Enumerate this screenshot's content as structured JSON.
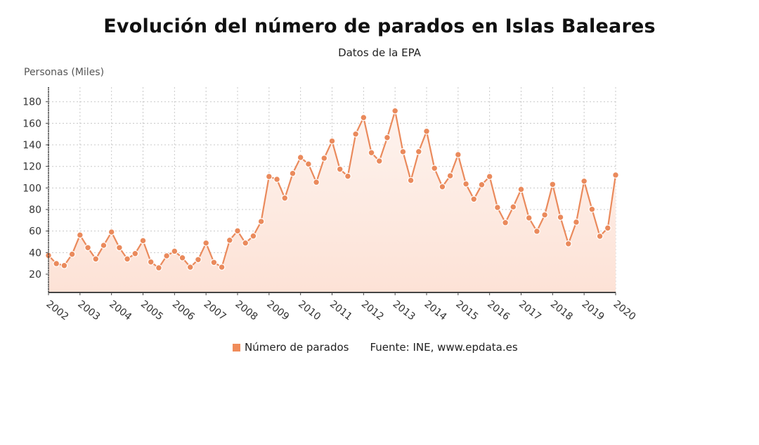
{
  "header": {
    "title": "Evolución del número de parados en Islas Baleares",
    "subtitle": "Datos de la EPA"
  },
  "legend": {
    "series_label": "Número de parados",
    "source": "Fuente: INE, www.epdata.es"
  },
  "colors": {
    "series": "#ea8a5c",
    "fill_top": "#fbece4",
    "fill_bottom": "#fde3d8",
    "grid": "#c8c8c8",
    "axis": "#444444"
  },
  "chart_data": {
    "type": "area",
    "title": "Evolución del número de parados en Islas Baleares",
    "subtitle": "Datos de la EPA",
    "xlabel": "",
    "ylabel": "Personas (Miles)",
    "ylim": [
      3,
      193
    ],
    "yticks": [
      20,
      40,
      60,
      80,
      100,
      120,
      140,
      160,
      180
    ],
    "xticks": [
      "2002",
      "2003",
      "2004",
      "2005",
      "2006",
      "2007",
      "2008",
      "2009",
      "2010",
      "2011",
      "2012",
      "2013",
      "2014",
      "2015",
      "2016",
      "2017",
      "2018",
      "2019",
      "2020"
    ],
    "grid": true,
    "legend_position": "bottom",
    "source": "Fuente: INE, www.epdata.es",
    "series": [
      {
        "name": "Número de parados",
        "x": [
          "2002T1",
          "2002T2",
          "2002T3",
          "2002T4",
          "2003T1",
          "2003T2",
          "2003T3",
          "2003T4",
          "2004T1",
          "2004T2",
          "2004T3",
          "2004T4",
          "2005T1",
          "2005T2",
          "2005T3",
          "2005T4",
          "2006T1",
          "2006T2",
          "2006T3",
          "2006T4",
          "2007T1",
          "2007T2",
          "2007T3",
          "2007T4",
          "2008T1",
          "2008T2",
          "2008T3",
          "2008T4",
          "2009T1",
          "2009T2",
          "2009T3",
          "2009T4",
          "2010T1",
          "2010T2",
          "2010T3",
          "2010T4",
          "2011T1",
          "2011T2",
          "2011T3",
          "2011T4",
          "2012T1",
          "2012T2",
          "2012T3",
          "2012T4",
          "2013T1",
          "2013T2",
          "2013T3",
          "2013T4",
          "2014T1",
          "2014T2",
          "2014T3",
          "2014T4",
          "2015T1",
          "2015T2",
          "2015T3",
          "2015T4",
          "2016T1",
          "2016T2",
          "2016T3",
          "2016T4",
          "2017T1",
          "2017T2",
          "2017T3",
          "2017T4",
          "2018T1",
          "2018T2",
          "2018T3",
          "2018T4",
          "2019T1",
          "2019T2",
          "2019T3",
          "2019T4",
          "2020T1"
        ],
        "values": [
          37.4,
          29.8,
          28.0,
          38.5,
          56.3,
          44.6,
          34.1,
          46.7,
          59.1,
          44.6,
          34.1,
          39.1,
          51.1,
          31.3,
          25.9,
          37.0,
          41.3,
          35.2,
          26.5,
          33.5,
          48.9,
          30.9,
          26.5,
          51.5,
          60.2,
          48.9,
          55.4,
          68.9,
          110.6,
          108.0,
          90.6,
          113.5,
          128.3,
          122.2,
          105.3,
          127.6,
          143.5,
          117.4,
          110.9,
          150.0,
          165.3,
          132.7,
          125.0,
          146.7,
          171.5,
          133.6,
          107.0,
          133.7,
          152.6,
          118.3,
          101.1,
          111.3,
          130.9,
          103.7,
          89.6,
          103.0,
          110.6,
          81.9,
          67.8,
          82.4,
          98.7,
          72.2,
          59.8,
          75.0,
          103.3,
          72.8,
          48.2,
          68.3,
          106.3,
          80.2,
          55.2,
          62.8,
          112.0
        ]
      }
    ]
  }
}
